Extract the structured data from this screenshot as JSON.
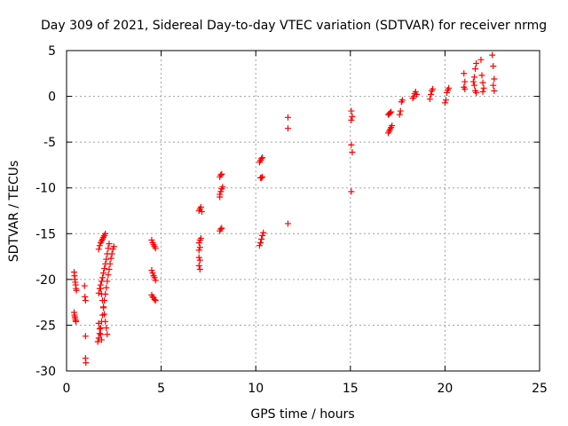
{
  "chart_data": {
    "type": "scatter",
    "title": "Day 309 of 2021, Sidereal Day-to-day VTEC variation (SDTVAR) for receiver nrmg",
    "xlabel": "GPS time / hours",
    "ylabel": "SDTVAR / TECUs",
    "xlim": [
      0,
      25
    ],
    "ylim": [
      -30,
      5
    ],
    "xticks": [
      0,
      5,
      10,
      15,
      20,
      25
    ],
    "yticks": [
      5,
      0,
      -5,
      -10,
      -15,
      -20,
      -25,
      -30
    ],
    "grid": true,
    "marker": "+",
    "series": [
      {
        "name": "SDTVAR",
        "color": "#ff0000",
        "points": [
          [
            0.4,
            -19.2
          ],
          [
            0.42,
            -19.6
          ],
          [
            0.44,
            -20.0
          ],
          [
            0.46,
            -20.3
          ],
          [
            0.48,
            -20.6
          ],
          [
            0.5,
            -21.0
          ],
          [
            0.52,
            -21.2
          ],
          [
            0.4,
            -23.6
          ],
          [
            0.42,
            -23.9
          ],
          [
            0.44,
            -24.1
          ],
          [
            0.46,
            -24.3
          ],
          [
            0.48,
            -24.5
          ],
          [
            0.5,
            -24.6
          ],
          [
            0.95,
            -20.7
          ],
          [
            0.97,
            -21.9
          ],
          [
            1.0,
            -22.3
          ],
          [
            1.0,
            -26.2
          ],
          [
            1.0,
            -28.6
          ],
          [
            1.02,
            -29.1
          ],
          [
            1.65,
            -26.8
          ],
          [
            1.7,
            -26.4
          ],
          [
            1.75,
            -25.9
          ],
          [
            1.8,
            -25.3
          ],
          [
            1.85,
            -24.6
          ],
          [
            1.9,
            -23.9
          ],
          [
            1.95,
            -23.1
          ],
          [
            2.0,
            -22.3
          ],
          [
            2.05,
            -21.6
          ],
          [
            2.1,
            -20.9
          ],
          [
            2.15,
            -20.2
          ],
          [
            2.2,
            -19.5
          ],
          [
            2.25,
            -18.9
          ],
          [
            2.3,
            -18.3
          ],
          [
            2.35,
            -17.7
          ],
          [
            2.4,
            -17.2
          ],
          [
            2.45,
            -16.7
          ],
          [
            2.5,
            -16.4
          ],
          [
            1.7,
            -21.5
          ],
          [
            1.75,
            -21.0
          ],
          [
            1.8,
            -20.6
          ],
          [
            1.85,
            -20.2
          ],
          [
            1.9,
            -19.8
          ],
          [
            1.95,
            -19.3
          ],
          [
            2.0,
            -18.8
          ],
          [
            2.05,
            -18.3
          ],
          [
            2.1,
            -17.8
          ],
          [
            2.15,
            -17.2
          ],
          [
            2.2,
            -16.6
          ],
          [
            2.25,
            -16.1
          ],
          [
            1.7,
            -16.7
          ],
          [
            1.75,
            -16.3
          ],
          [
            1.8,
            -16.0
          ],
          [
            1.85,
            -15.8
          ],
          [
            1.9,
            -15.6
          ],
          [
            1.95,
            -15.4
          ],
          [
            2.0,
            -15.2
          ],
          [
            2.05,
            -15.0
          ],
          [
            1.8,
            -21.0
          ],
          [
            1.85,
            -21.6
          ],
          [
            1.9,
            -22.3
          ],
          [
            1.95,
            -23.0
          ],
          [
            2.0,
            -23.8
          ],
          [
            2.05,
            -24.6
          ],
          [
            2.1,
            -25.3
          ],
          [
            2.15,
            -26.0
          ],
          [
            1.7,
            -24.8
          ],
          [
            1.75,
            -25.4
          ],
          [
            1.8,
            -26.0
          ],
          [
            1.85,
            -26.6
          ],
          [
            4.5,
            -15.7
          ],
          [
            4.55,
            -16.0
          ],
          [
            4.6,
            -16.2
          ],
          [
            4.65,
            -16.4
          ],
          [
            4.7,
            -16.6
          ],
          [
            4.5,
            -19.0
          ],
          [
            4.55,
            -19.3
          ],
          [
            4.6,
            -19.6
          ],
          [
            4.65,
            -19.8
          ],
          [
            4.7,
            -20.1
          ],
          [
            4.5,
            -21.7
          ],
          [
            4.55,
            -21.9
          ],
          [
            4.6,
            -22.0
          ],
          [
            4.65,
            -22.2
          ],
          [
            4.7,
            -22.3
          ],
          [
            7.0,
            -12.5
          ],
          [
            7.05,
            -12.3
          ],
          [
            7.1,
            -12.1
          ],
          [
            7.15,
            -12.6
          ],
          [
            7.0,
            -16.0
          ],
          [
            7.05,
            -15.7
          ],
          [
            7.1,
            -15.5
          ],
          [
            7.0,
            -16.8
          ],
          [
            7.05,
            -16.5
          ],
          [
            7.0,
            -17.6
          ],
          [
            7.05,
            -17.9
          ],
          [
            7.0,
            -18.5
          ],
          [
            7.05,
            -18.9
          ],
          [
            8.1,
            -8.8
          ],
          [
            8.15,
            -8.6
          ],
          [
            8.2,
            -8.5
          ],
          [
            8.1,
            -10.7
          ],
          [
            8.15,
            -10.4
          ],
          [
            8.2,
            -10.1
          ],
          [
            8.25,
            -9.9
          ],
          [
            8.1,
            -11.0
          ],
          [
            8.1,
            -14.7
          ],
          [
            8.15,
            -14.5
          ],
          [
            8.2,
            -14.4
          ],
          [
            10.2,
            -7.2
          ],
          [
            10.25,
            -7.0
          ],
          [
            10.3,
            -6.8
          ],
          [
            10.35,
            -6.7
          ],
          [
            10.25,
            -8.9
          ],
          [
            10.3,
            -8.9
          ],
          [
            10.35,
            -8.8
          ],
          [
            10.2,
            -16.3
          ],
          [
            10.25,
            -16.0
          ],
          [
            10.3,
            -15.6
          ],
          [
            10.35,
            -15.2
          ],
          [
            10.4,
            -14.9
          ],
          [
            11.7,
            -2.3
          ],
          [
            11.7,
            -3.5
          ],
          [
            11.7,
            -13.9
          ],
          [
            15.05,
            -1.6
          ],
          [
            15.1,
            -2.2
          ],
          [
            15.05,
            -2.6
          ],
          [
            15.05,
            -5.3
          ],
          [
            15.1,
            -6.1
          ],
          [
            15.05,
            -10.4
          ],
          [
            17.0,
            -4.0
          ],
          [
            17.05,
            -3.8
          ],
          [
            17.1,
            -3.6
          ],
          [
            17.15,
            -3.4
          ],
          [
            17.2,
            -3.2
          ],
          [
            17.0,
            -2.0
          ],
          [
            17.05,
            -1.9
          ],
          [
            17.1,
            -1.8
          ],
          [
            17.15,
            -1.7
          ],
          [
            17.6,
            -2.0
          ],
          [
            17.65,
            -1.6
          ],
          [
            17.7,
            -0.6
          ],
          [
            17.75,
            -0.4
          ],
          [
            18.3,
            -0.2
          ],
          [
            18.35,
            0.0
          ],
          [
            18.4,
            0.3
          ],
          [
            18.45,
            0.5
          ],
          [
            18.5,
            0.2
          ],
          [
            19.2,
            -0.3
          ],
          [
            19.25,
            0.2
          ],
          [
            19.3,
            0.6
          ],
          [
            19.35,
            0.8
          ],
          [
            20.0,
            -0.7
          ],
          [
            20.05,
            -0.4
          ],
          [
            20.1,
            0.4
          ],
          [
            20.15,
            0.7
          ],
          [
            20.2,
            0.9
          ],
          [
            21.0,
            2.5
          ],
          [
            21.05,
            1.6
          ],
          [
            21.0,
            1.0
          ],
          [
            21.05,
            0.8
          ],
          [
            21.5,
            1.6
          ],
          [
            21.55,
            2.1
          ],
          [
            21.6,
            3.0
          ],
          [
            21.65,
            3.6
          ],
          [
            21.55,
            1.2
          ],
          [
            21.6,
            0.6
          ],
          [
            21.65,
            0.4
          ],
          [
            21.9,
            4.0
          ],
          [
            21.95,
            2.3
          ],
          [
            22.0,
            1.5
          ],
          [
            22.05,
            0.9
          ],
          [
            22.0,
            0.5
          ],
          [
            22.5,
            4.5
          ],
          [
            22.55,
            3.3
          ],
          [
            22.6,
            1.9
          ],
          [
            22.55,
            1.2
          ],
          [
            22.6,
            0.6
          ]
        ]
      }
    ]
  }
}
